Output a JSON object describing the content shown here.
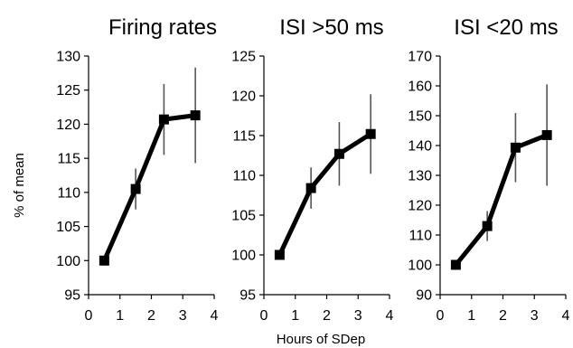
{
  "chart_data": {
    "shared": {
      "xlabel": "Hours of SDep",
      "ylabel": "% of mean"
    },
    "panels": [
      {
        "type": "line",
        "title": "Firing rates",
        "x": [
          0.5,
          1.5,
          2.4,
          3.4
        ],
        "values": [
          100,
          110.5,
          120.7,
          121.3
        ],
        "error": [
          0,
          3,
          5.2,
          7
        ],
        "ylim": [
          95,
          130
        ],
        "xlim": [
          0,
          4
        ],
        "yticks": [
          "95",
          "100",
          "105",
          "110",
          "115",
          "120",
          "125",
          "130"
        ],
        "xticks": [
          "0",
          "1",
          "2",
          "3",
          "4"
        ]
      },
      {
        "type": "line",
        "title": "ISI >50 ms",
        "x": [
          0.5,
          1.5,
          2.4,
          3.4
        ],
        "values": [
          100,
          108.4,
          112.7,
          115.2
        ],
        "error": [
          0,
          2.6,
          4,
          5
        ],
        "ylim": [
          95,
          125
        ],
        "xlim": [
          0,
          4
        ],
        "yticks": [
          "95",
          "100",
          "105",
          "110",
          "115",
          "120",
          "125"
        ],
        "xticks": [
          "0",
          "1",
          "2",
          "3",
          "4"
        ]
      },
      {
        "type": "line",
        "title": "ISI <20 ms",
        "x": [
          0.5,
          1.5,
          2.4,
          3.4
        ],
        "values": [
          100,
          113,
          139.3,
          143.5
        ],
        "error": [
          0,
          5,
          11.6,
          17
        ],
        "ylim": [
          90,
          170
        ],
        "xlim": [
          0,
          4
        ],
        "yticks": [
          "90",
          "100",
          "110",
          "120",
          "130",
          "140",
          "150",
          "160",
          "170"
        ],
        "xticks": [
          "0",
          "1",
          "2",
          "3",
          "4"
        ]
      }
    ]
  }
}
